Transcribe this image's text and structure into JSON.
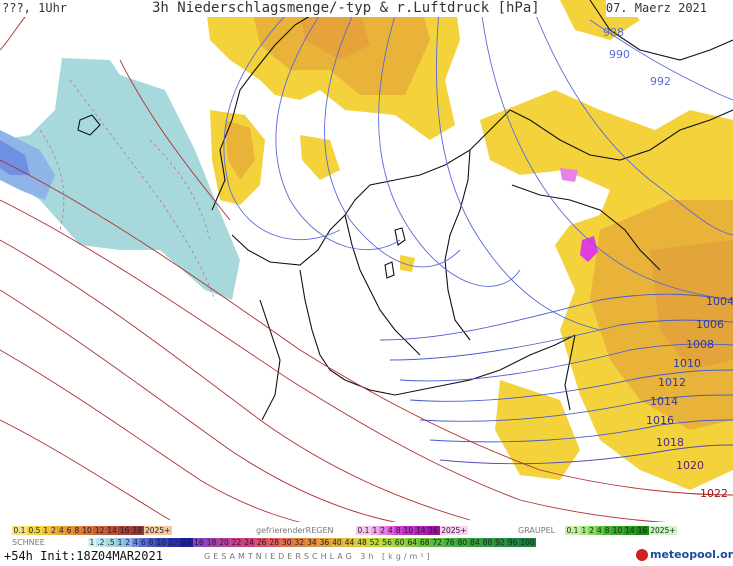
{
  "header": {
    "left": "???, 1Uhr",
    "title": "3h Niederschlagsmenge/-typ & r.Luftdruck [hPa]",
    "date": "07. Maerz 2021"
  },
  "footer": {
    "run": "+54h Init:18Z04MAR2021",
    "brand": "meteopool.org"
  },
  "legend": {
    "rain_values": [
      "0.1",
      "0.5",
      "1",
      "2",
      "4",
      "6",
      "8",
      "10",
      "12",
      "14",
      "16",
      "18",
      "2025+"
    ],
    "freezing_label": "gefrierenderREGEN",
    "freezing_values": [
      "0.1",
      "1",
      "2",
      "4",
      "8",
      "10",
      "14",
      "16",
      "2025+"
    ],
    "graupel_label": "GRAUPEL",
    "graupel_values": [
      "0.1",
      "1",
      "2",
      "4",
      "8",
      "10",
      "14",
      "16",
      "2025+"
    ],
    "snow_label": "SCHNEE",
    "snow_values": [
      "1",
      ".2",
      ".5",
      "1",
      "2",
      "4",
      "6",
      "8",
      "10",
      "12",
      "14",
      "16",
      "18",
      "20",
      "22",
      "24",
      "26",
      "28",
      "30",
      "32",
      "34",
      "36",
      "40",
      "44",
      "48",
      "52",
      "56",
      "60",
      "64",
      "68",
      "72",
      "76",
      "80",
      "84",
      "88",
      "92",
      "96",
      "100"
    ],
    "total_label": "GESAMTNIEDERSCHLAG 3h [kg/m²]"
  },
  "isobars": [
    {
      "label": "988",
      "color": "#5a6ad8"
    },
    {
      "label": "990",
      "color": "#5a6ad8"
    },
    {
      "label": "992",
      "color": "#5a6ad8"
    },
    {
      "label": "1004",
      "color": "#2a3aa8"
    },
    {
      "label": "1006",
      "color": "#2a3aa8"
    },
    {
      "label": "1008",
      "color": "#2a3aa8"
    },
    {
      "label": "1010",
      "color": "#2a3aa8"
    },
    {
      "label": "1012",
      "color": "#2a3aa8"
    },
    {
      "label": "1014",
      "color": "#2a3aa8"
    },
    {
      "label": "1016",
      "color": "#3a2a98"
    },
    {
      "label": "1018",
      "color": "#4a2a88"
    },
    {
      "label": "1020",
      "color": "#5a1a78"
    },
    {
      "label": "1022",
      "color": "#a01010"
    }
  ]
}
